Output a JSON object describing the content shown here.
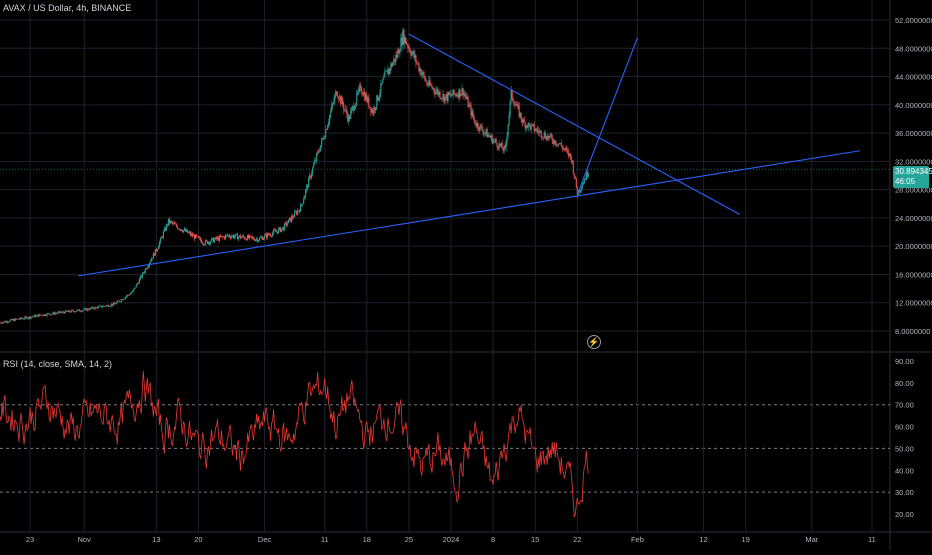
{
  "price_pane": {
    "legend": "AVAX / US Dollar, 4h, BINANCE",
    "current_price": "30.89434530",
    "countdown": "46:05",
    "y_ticks": [
      "52.0000000",
      "48.0000000",
      "44.0000000",
      "40.0000000",
      "36.0000000",
      "32.0000000",
      "28.0000000",
      "24.0000000",
      "20.0000000",
      "16.0000000",
      "12.0000000",
      "8.0000000"
    ]
  },
  "rsi_pane": {
    "legend": "RSI (14, close, SMA, 14, 2)",
    "y_ticks": [
      "90.00",
      "80.00",
      "70.00",
      "60.00",
      "50.00",
      "40.00",
      "30.00",
      "20.00"
    ]
  },
  "time_axis": {
    "labels": [
      "23",
      "Nov",
      "13",
      "20",
      "Dec",
      "11",
      "18",
      "25",
      "2024",
      "8",
      "15",
      "22",
      "Feb",
      "12",
      "19",
      "Mar",
      "11"
    ]
  },
  "colors": {
    "background": "#000000",
    "up_candle": "#26a69a",
    "down_candle": "#ef5350",
    "trendline": "#2962ff",
    "rsi_line": "#e53935",
    "grid": "#1e222d",
    "axis_text": "#b2b5be"
  },
  "icons": {
    "replay": "lightning-bolt-icon"
  },
  "chart_data": [
    {
      "type": "candlestick",
      "title": "AVAX / US Dollar, 4h, BINANCE",
      "ylim": [
        6,
        54
      ],
      "grid": true,
      "x_range": [
        "2023-10-18",
        "2024-03-14"
      ],
      "close_path": [
        [
          "2023-10-18",
          9.2
        ],
        [
          "2023-10-25",
          10.3
        ],
        [
          "2023-11-01",
          11.0
        ],
        [
          "2023-11-06",
          11.8
        ],
        [
          "2023-11-09",
          13.5
        ],
        [
          "2023-11-11",
          16.5
        ],
        [
          "2023-11-13",
          19.5
        ],
        [
          "2023-11-15",
          23.5
        ],
        [
          "2023-11-18",
          22.0
        ],
        [
          "2023-11-21",
          20.5
        ],
        [
          "2023-11-25",
          21.5
        ],
        [
          "2023-11-30",
          21.0
        ],
        [
          "2023-12-04",
          22.5
        ],
        [
          "2023-12-07",
          25.5
        ],
        [
          "2023-12-09",
          31.0
        ],
        [
          "2023-12-11",
          36.0
        ],
        [
          "2023-12-13",
          42.0
        ],
        [
          "2023-12-15",
          38.0
        ],
        [
          "2023-12-17",
          42.5
        ],
        [
          "2023-12-19",
          39.0
        ],
        [
          "2023-12-21",
          44.0
        ],
        [
          "2023-12-23",
          47.0
        ],
        [
          "2023-12-24",
          49.8
        ],
        [
          "2023-12-26",
          46.5
        ],
        [
          "2023-12-28",
          43.0
        ],
        [
          "2023-12-31",
          41.0
        ],
        [
          "2024-01-03",
          42.0
        ],
        [
          "2024-01-05",
          37.5
        ],
        [
          "2024-01-08",
          35.0
        ],
        [
          "2024-01-10",
          33.5
        ],
        [
          "2024-01-11",
          41.5
        ],
        [
          "2024-01-13",
          37.5
        ],
        [
          "2024-01-16",
          36.0
        ],
        [
          "2024-01-19",
          34.5
        ],
        [
          "2024-01-21",
          32.5
        ],
        [
          "2024-01-22",
          27.5
        ],
        [
          "2024-01-24",
          30.9
        ]
      ],
      "trendlines": [
        {
          "from": [
            "2023-10-31",
            15.8
          ],
          "to": [
            "2024-03-09",
            33.5
          ]
        },
        {
          "from": [
            "2023-12-25",
            50.0
          ],
          "to": [
            "2024-02-18",
            24.5
          ]
        },
        {
          "from": [
            "2024-01-22",
            27.3
          ],
          "to": [
            "2024-02-01",
            49.5
          ]
        }
      ]
    },
    {
      "type": "line",
      "title": "RSI (14, close, SMA, 14, 2)",
      "ylim": [
        15,
        92
      ],
      "levels": [
        70,
        50,
        30
      ],
      "x": [
        "2023-10-18",
        "2023-10-22",
        "2023-10-26",
        "2023-10-30",
        "2023-11-03",
        "2023-11-07",
        "2023-11-11",
        "2023-11-14",
        "2023-11-17",
        "2023-11-20",
        "2023-11-23",
        "2023-11-27",
        "2023-12-01",
        "2023-12-05",
        "2023-12-08",
        "2023-12-11",
        "2023-12-13",
        "2023-12-15",
        "2023-12-18",
        "2023-12-21",
        "2023-12-24",
        "2023-12-27",
        "2023-12-30",
        "2024-01-02",
        "2024-01-05",
        "2024-01-08",
        "2024-01-10",
        "2024-01-12",
        "2024-01-15",
        "2024-01-18",
        "2024-01-20",
        "2024-01-22",
        "2024-01-23",
        "2024-01-24"
      ],
      "values": [
        68,
        62,
        72,
        58,
        66,
        61,
        80,
        57,
        64,
        50,
        56,
        47,
        62,
        54,
        72,
        80,
        60,
        74,
        55,
        66,
        60,
        42,
        48,
        37,
        58,
        32,
        52,
        68,
        44,
        50,
        40,
        22,
        40,
        49
      ]
    }
  ]
}
